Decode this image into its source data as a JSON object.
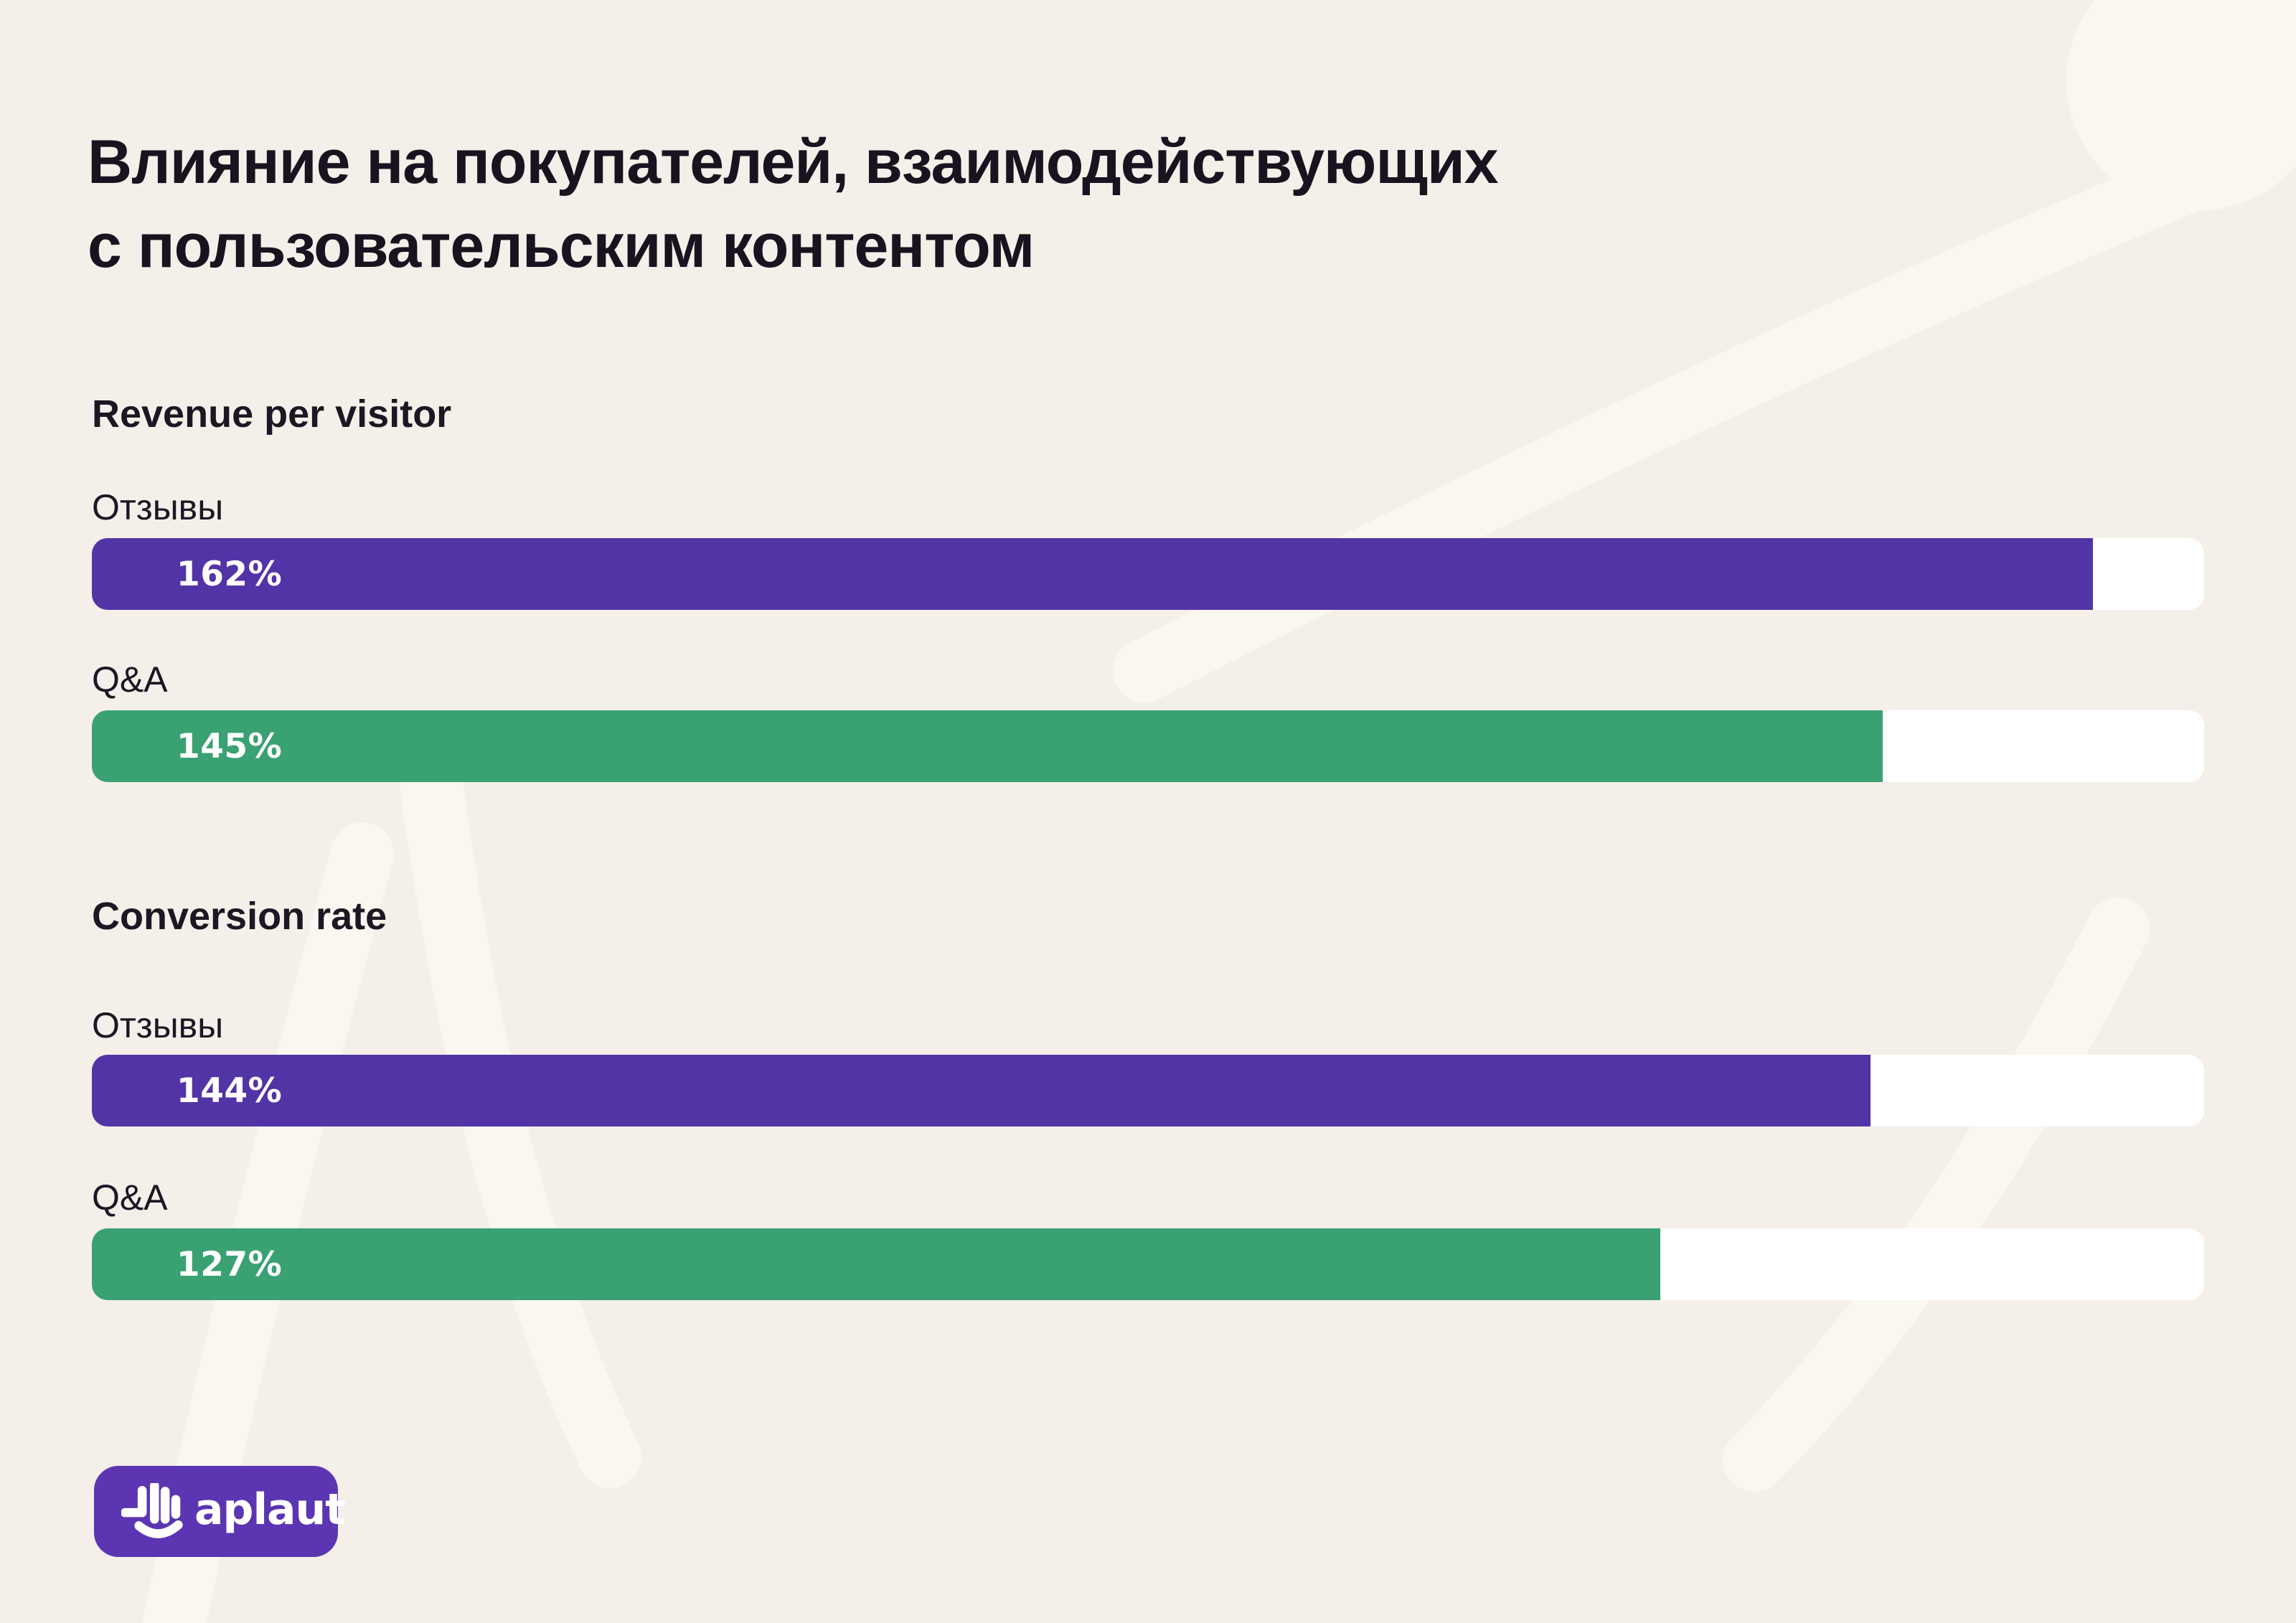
{
  "title": {
    "lines": [
      "Влияние на покупателей, взаимодействующих",
      "с пользовательским контентом"
    ]
  },
  "chart_data": {
    "type": "bar",
    "orientation": "horizontal",
    "unit": "%",
    "scale_max_percent": 171,
    "track_color": "#ffffff",
    "groups": [
      {
        "title": "Revenue per visitor",
        "bars": [
          {
            "label": "Отзывы",
            "value": 162,
            "display": "162%",
            "color": "#5334a6"
          },
          {
            "label": "Q&A",
            "value": 145,
            "display": "145%",
            "color": "#3aa173"
          }
        ]
      },
      {
        "title": "Conversion rate",
        "bars": [
          {
            "label": "Отзывы",
            "value": 144,
            "display": "144%",
            "color": "#5334a6"
          },
          {
            "label": "Q&A",
            "value": 127,
            "display": "127%",
            "color": "#3aa173"
          }
        ]
      }
    ]
  },
  "logo": {
    "text": "aplaut",
    "icon": "clap-hand-icon",
    "background": "#5b35b2",
    "foreground": "#ffffff"
  },
  "colors": {
    "page_background": "#f4efe9",
    "decor_stripe": "#faf6f0",
    "decor_blob": "#faf6f0",
    "text_dark": "#17131f",
    "bar_purple": "#5334a6",
    "bar_green": "#3aa173"
  }
}
